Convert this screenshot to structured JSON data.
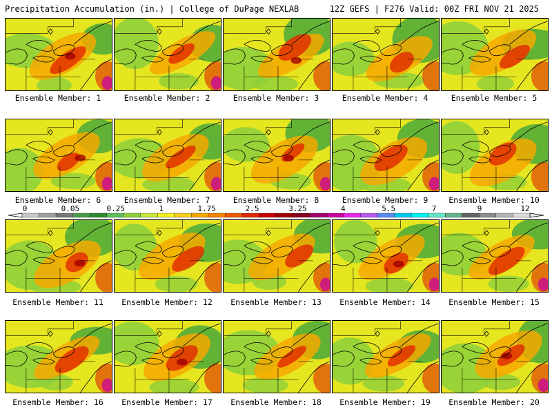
{
  "header": {
    "left_title": "Precipitation Accumulation (in.) | College of DuPage NEXLAB",
    "right_title": "12Z GEFS | F276 Valid: 00Z FRI NOV 21 2025"
  },
  "colorbar": {
    "tick_labels": [
      "0",
      "0.05",
      "0.25",
      "1",
      "1.75",
      "2.5",
      "3.25",
      "4",
      "5.5",
      "7",
      "9",
      "12"
    ],
    "colors": [
      "#c8c8c8",
      "#a0a0a0",
      "#787878",
      "#4a9a4a",
      "#2e8b2e",
      "#5cc05c",
      "#8fd03a",
      "#c8e63c",
      "#f0f020",
      "#f5d020",
      "#f5a800",
      "#f58200",
      "#ee5a00",
      "#e02800",
      "#c80000",
      "#a00000",
      "#8a0020",
      "#a0006e",
      "#c800a0",
      "#e628e6",
      "#b45af0",
      "#5a8cf0",
      "#00c8f0",
      "#00f0f0",
      "#64e6c8",
      "#64b48c",
      "#646464",
      "#8c8c8c",
      "#b4b4b4",
      "#dcdcdc"
    ]
  },
  "panels": [
    {
      "label": "Ensemble Member: 1"
    },
    {
      "label": "Ensemble Member: 2"
    },
    {
      "label": "Ensemble Member: 3"
    },
    {
      "label": "Ensemble Member: 4"
    },
    {
      "label": "Ensemble Member: 5"
    },
    {
      "label": "Ensemble Member: 6"
    },
    {
      "label": "Ensemble Member: 7"
    },
    {
      "label": "Ensemble Member: 8"
    },
    {
      "label": "Ensemble Member: 9"
    },
    {
      "label": "Ensemble Member: 10"
    },
    {
      "label": "Ensemble Member: 11"
    },
    {
      "label": "Ensemble Member: 12"
    },
    {
      "label": "Ensemble Member: 13"
    },
    {
      "label": "Ensemble Member: 14"
    },
    {
      "label": "Ensemble Member: 15"
    },
    {
      "label": "Ensemble Member: 16"
    },
    {
      "label": "Ensemble Member: 17"
    },
    {
      "label": "Ensemble Member: 18"
    },
    {
      "label": "Ensemble Member: 19"
    },
    {
      "label": "Ensemble Member: 20"
    }
  ],
  "field_colors": {
    "green": "#4aa83a",
    "light_green": "#8fd03a",
    "yellow": "#e6e620",
    "orange": "#f5a800",
    "red": "#e02800",
    "dark_red": "#a00000",
    "magenta": "#c800a0",
    "gray": "#9a9a9a"
  }
}
